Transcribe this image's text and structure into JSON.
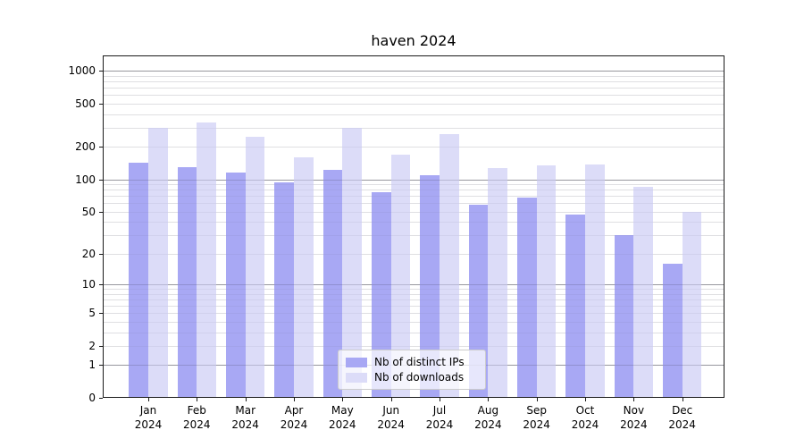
{
  "title": "haven 2024",
  "chart_data": {
    "type": "bar",
    "title": "haven 2024",
    "categories": [
      "Jan 2024",
      "Feb 2024",
      "Mar 2024",
      "Apr 2024",
      "May 2024",
      "Jun 2024",
      "Jul 2024",
      "Aug 2024",
      "Sep 2024",
      "Oct 2024",
      "Nov 2024",
      "Dec 2024"
    ],
    "series": [
      {
        "name": "Nb of distinct IPs",
        "color": "#a8a8f4",
        "values": [
          143,
          129,
          116,
          93,
          123,
          76,
          110,
          58,
          68,
          47,
          30,
          16
        ]
      },
      {
        "name": "Nb of downloads",
        "color": "#dcdcf8",
        "values": [
          300,
          333,
          249,
          161,
          298,
          170,
          262,
          127,
          134,
          136,
          85,
          50
        ]
      }
    ],
    "xlabel": "",
    "ylabel": "",
    "yscale": "log1p",
    "ylim": [
      0,
      1380
    ],
    "yticks": [
      0,
      1,
      2,
      5,
      10,
      20,
      50,
      100,
      200,
      500,
      1000
    ],
    "grid": {
      "major": [
        1,
        10,
        100,
        1000
      ],
      "minor": [
        2,
        3,
        4,
        5,
        6,
        7,
        8,
        9,
        20,
        30,
        40,
        50,
        60,
        70,
        80,
        90,
        200,
        300,
        400,
        500,
        600,
        700,
        800,
        900
      ]
    },
    "legend_position": "lower-center-inside"
  }
}
